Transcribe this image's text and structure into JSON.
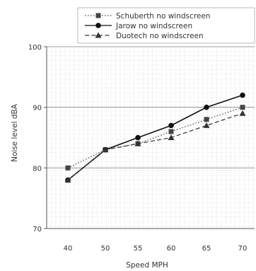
{
  "chart_data": {
    "type": "line",
    "title": "",
    "xlabel": "Speed MPH",
    "ylabel": "Noise level dBA",
    "categories": [
      "40",
      "50",
      "55",
      "60",
      "65",
      "70"
    ],
    "ylim": [
      70,
      100
    ],
    "yticks": [
      "70",
      "80",
      "90",
      "100"
    ],
    "grid": true,
    "legend_position": "top-right",
    "series": [
      {
        "name": "Schuberth no windscreen",
        "values": [
          80,
          83,
          84,
          86,
          88,
          90
        ],
        "marker": "square",
        "dash": "dotted",
        "color": "#444444"
      },
      {
        "name": "Jarow no windscreen",
        "values": [
          78,
          83,
          85,
          87,
          90,
          92
        ],
        "marker": "circle",
        "dash": "solid",
        "color": "#111111"
      },
      {
        "name": "Duotech no windscreen",
        "values": [
          78,
          83,
          84,
          85,
          87,
          89
        ],
        "marker": "triangle",
        "dash": "dashed",
        "color": "#333333"
      }
    ]
  }
}
